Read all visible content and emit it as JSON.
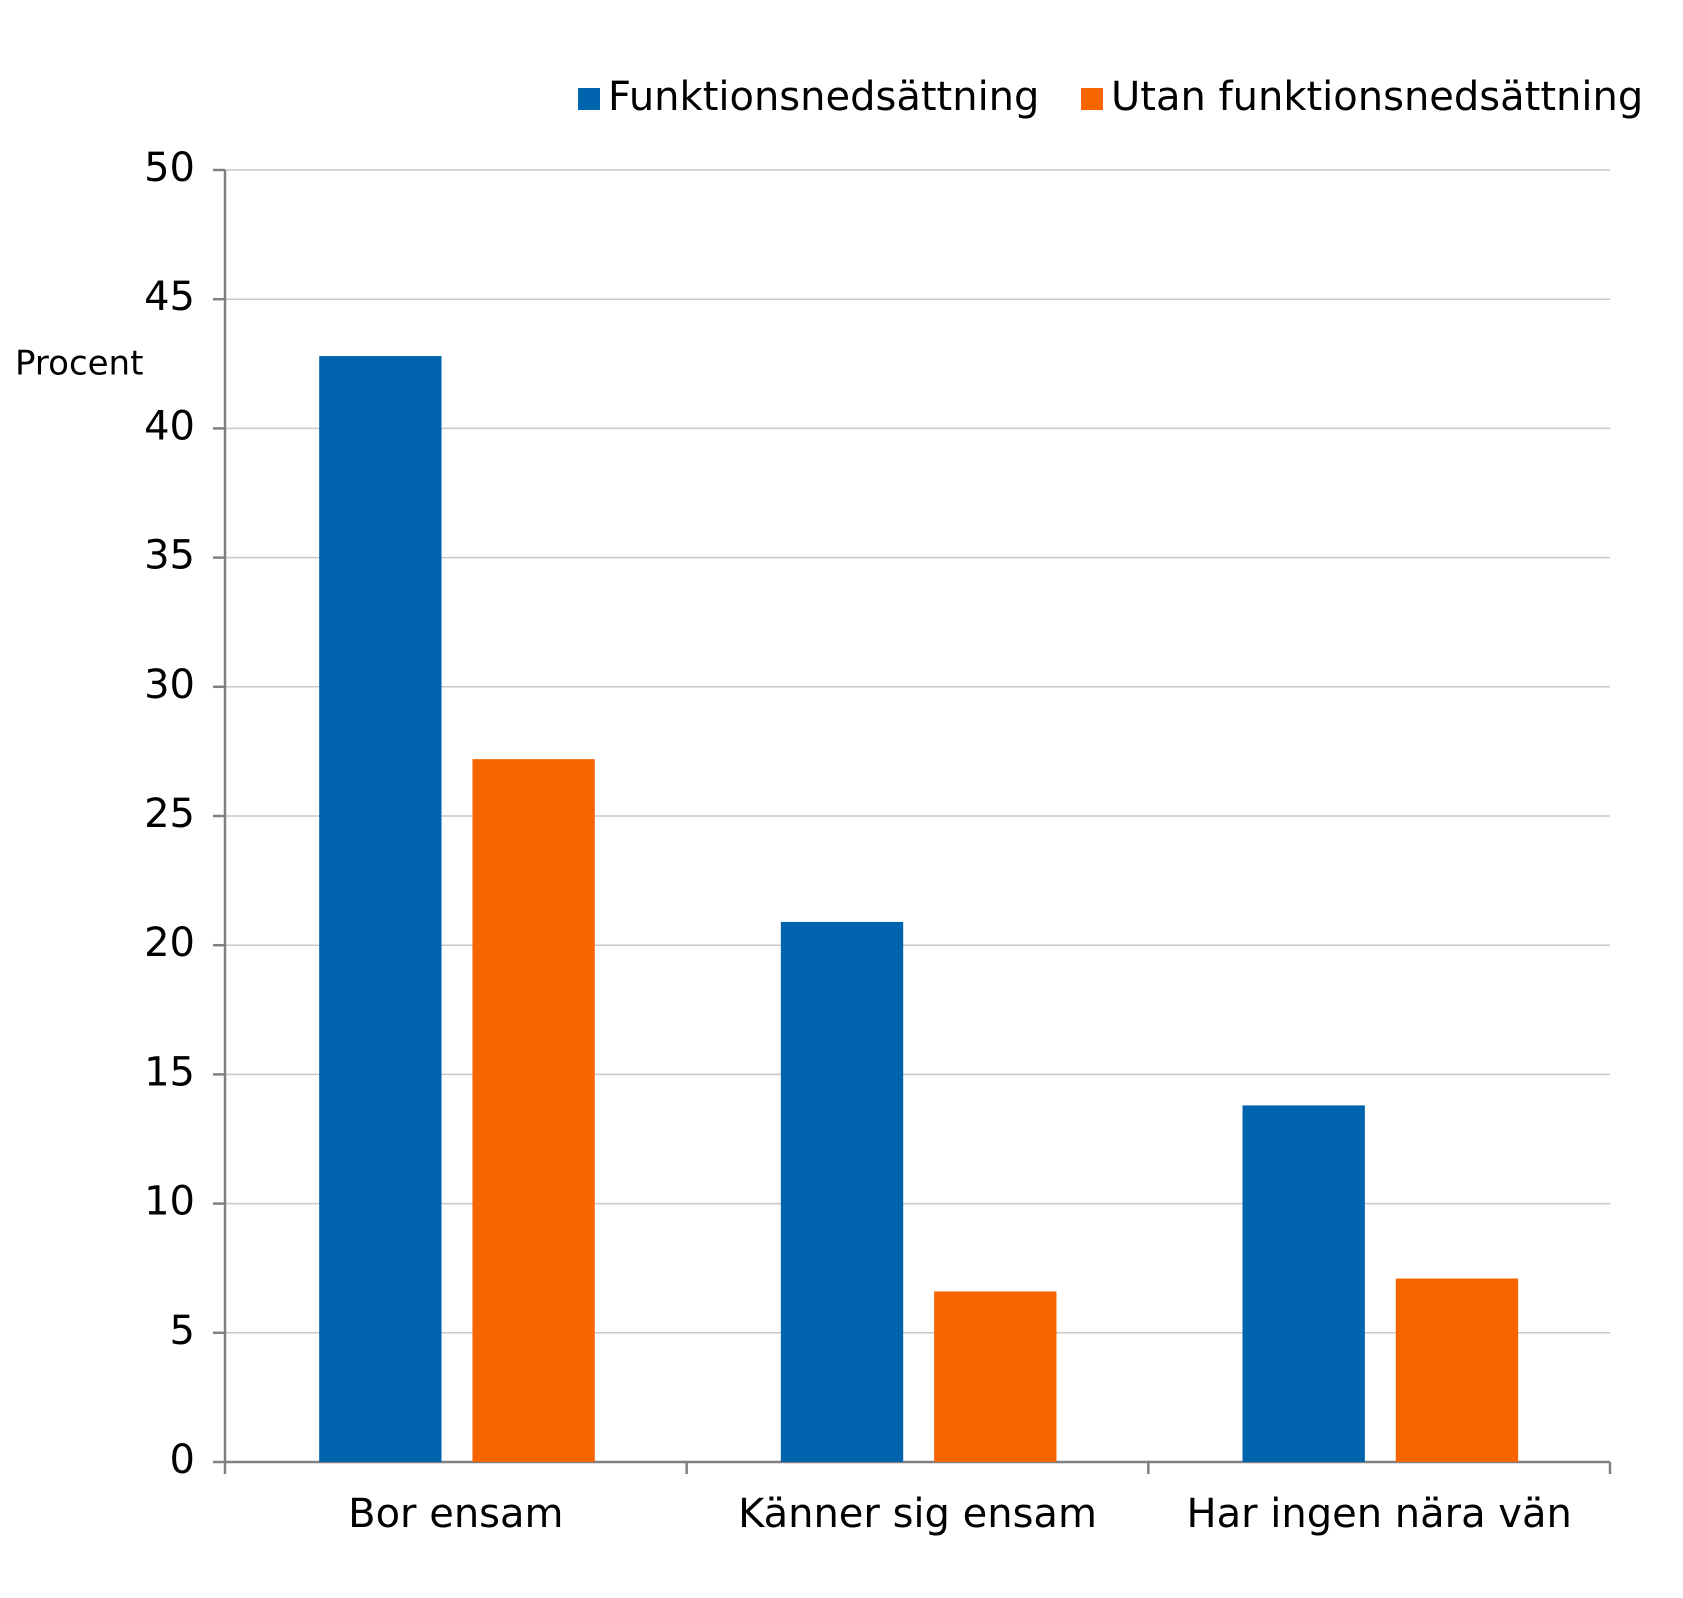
{
  "chart_data": {
    "type": "bar",
    "y_label": "Procent",
    "categories": [
      "Bor ensam",
      "Känner sig ensam",
      "Har ingen nära vän"
    ],
    "series": [
      {
        "name": "Funktionsnedsättning",
        "color": "#0063ae",
        "values": [
          42.8,
          20.9,
          13.8
        ]
      },
      {
        "name": "Utan funktionsnedsättning",
        "color": "#f86400",
        "values": [
          27.2,
          6.6,
          7.1
        ]
      }
    ],
    "ylim": [
      0,
      50
    ],
    "yticks": [
      0,
      5,
      10,
      15,
      20,
      25,
      30,
      35,
      40,
      45,
      50
    ],
    "grid": true
  }
}
